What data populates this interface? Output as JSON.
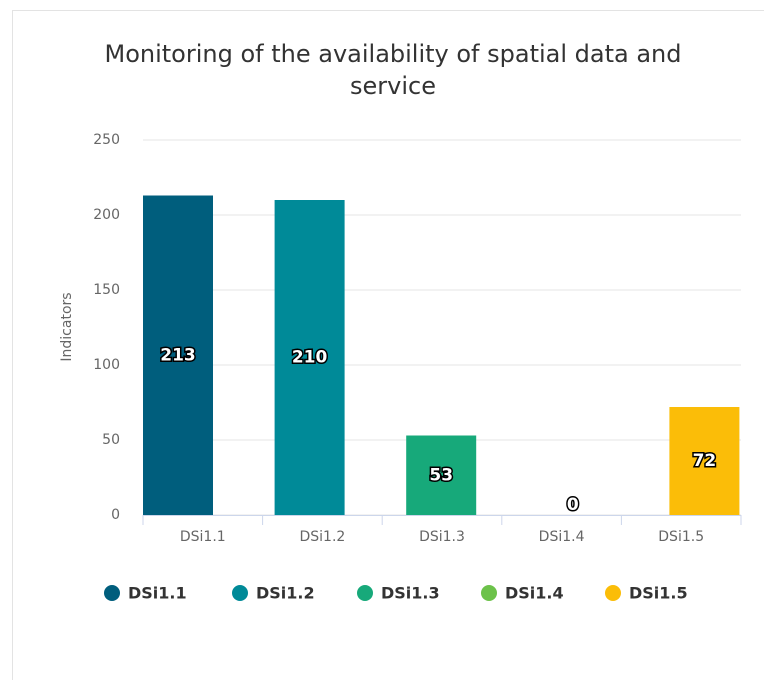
{
  "chart_data": {
    "type": "bar",
    "title": "Monitoring of the availability of spatial data and service",
    "y_label": "Indicators",
    "categories": [
      "DSi1.1",
      "DSi1.2",
      "DSi1.3",
      "DSi1.4",
      "DSi1.5"
    ],
    "series": [
      {
        "name": "DSi1.1",
        "color": "#005e7d",
        "values": [
          213,
          null,
          null,
          null,
          null
        ]
      },
      {
        "name": "DSi1.2",
        "color": "#008a98",
        "values": [
          null,
          210,
          null,
          null,
          null
        ]
      },
      {
        "name": "DSi1.3",
        "color": "#17a97a",
        "values": [
          null,
          null,
          53,
          null,
          null
        ]
      },
      {
        "name": "DSi1.4",
        "color": "#6cc24a",
        "values": [
          null,
          null,
          null,
          0,
          null
        ]
      },
      {
        "name": "DSi1.5",
        "color": "#fbbd08",
        "values": [
          null,
          null,
          null,
          null,
          72
        ]
      }
    ],
    "ylim": [
      0,
      250
    ],
    "yticks": [
      0,
      50,
      100,
      150,
      200,
      250
    ],
    "grid": true,
    "legend": "bottom"
  }
}
